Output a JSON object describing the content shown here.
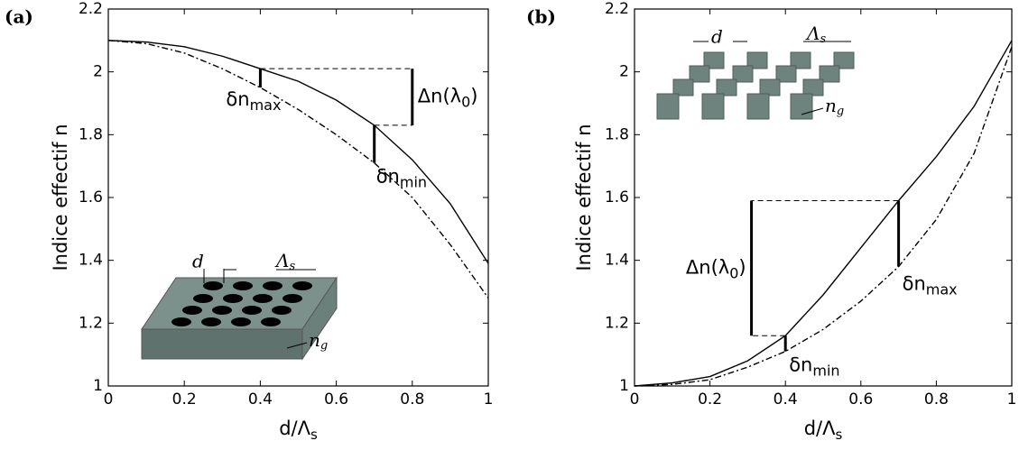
{
  "chart_data": [
    {
      "type": "line",
      "panel": "(a)",
      "x_label": "d/Λ",
      "x_label_sub": "s",
      "y_label": "Indice effectif  n",
      "x": [
        0,
        0.1,
        0.2,
        0.3,
        0.4,
        0.5,
        0.6,
        0.7,
        0.8,
        0.9,
        1
      ],
      "series": [
        {
          "style": "solid",
          "color": "#000000",
          "values": [
            2.1,
            2.095,
            2.08,
            2.05,
            2.01,
            1.97,
            1.91,
            1.83,
            1.72,
            1.58,
            1.39
          ]
        },
        {
          "style": "dashdot",
          "color": "#000000",
          "values": [
            2.1,
            2.09,
            2.06,
            2.01,
            1.95,
            1.88,
            1.8,
            1.71,
            1.6,
            1.45,
            1.28
          ]
        }
      ],
      "xlim": [
        0,
        1
      ],
      "ylim": [
        1,
        2.2
      ],
      "xticks": [
        0,
        0.2,
        0.4,
        0.6,
        0.8,
        1
      ],
      "yticks": [
        1,
        1.2,
        1.4,
        1.6,
        1.8,
        2,
        2.2
      ],
      "annotations": [
        {
          "kind": "bar",
          "x": 0.4,
          "text": "δn",
          "sub": "max"
        },
        {
          "kind": "bar",
          "x": 0.7,
          "text": "δn",
          "sub": "min"
        },
        {
          "kind": "delta",
          "x": 0.8,
          "from": 0.4,
          "to": 0.7,
          "text": "Δn(λ",
          "sub": "0",
          "after": ")"
        }
      ],
      "inset": {
        "d": "d",
        "lambda": "Λ",
        "lambda_sub": "s",
        "n": "n",
        "n_sub": "g"
      }
    },
    {
      "type": "line",
      "panel": "(b)",
      "x_label": "d/Λ",
      "x_label_sub": "s",
      "y_label": "Indice effectif  n",
      "x": [
        0,
        0.1,
        0.2,
        0.3,
        0.4,
        0.5,
        0.6,
        0.7,
        0.8,
        0.9,
        1
      ],
      "series": [
        {
          "style": "solid",
          "color": "#000000",
          "values": [
            1.0,
            1.01,
            1.03,
            1.08,
            1.16,
            1.29,
            1.44,
            1.59,
            1.73,
            1.89,
            2.1
          ]
        },
        {
          "style": "dashdot",
          "color": "#000000",
          "values": [
            1.0,
            1.005,
            1.02,
            1.06,
            1.11,
            1.18,
            1.27,
            1.38,
            1.53,
            1.74,
            2.08
          ]
        }
      ],
      "xlim": [
        0,
        1
      ],
      "ylim": [
        1,
        2.2
      ],
      "xticks": [
        0,
        0.2,
        0.4,
        0.6,
        0.8,
        1
      ],
      "yticks": [
        1,
        1.2,
        1.4,
        1.6,
        1.8,
        2,
        2.2
      ],
      "annotations": [
        {
          "kind": "bar",
          "x": 0.7,
          "text": "δn",
          "sub": "max"
        },
        {
          "kind": "bar",
          "x": 0.4,
          "text": "δn",
          "sub": "min"
        },
        {
          "kind": "delta",
          "x": 0.31,
          "from": 0.7,
          "to": 0.4,
          "text": "Δn(λ",
          "sub": "0",
          "after": ")"
        }
      ],
      "inset": {
        "d": "d",
        "lambda": "Λ",
        "lambda_sub": "s",
        "n": "n",
        "n_sub": "g"
      }
    }
  ]
}
